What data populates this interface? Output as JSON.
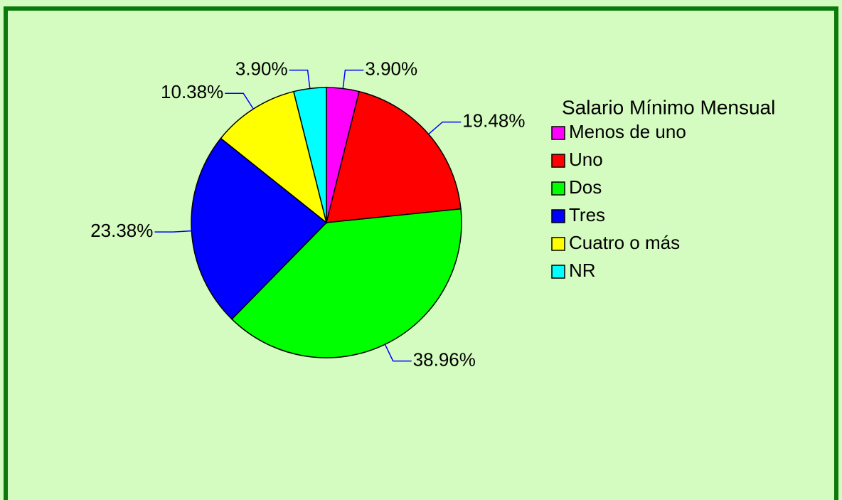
{
  "chart_data": {
    "type": "pie",
    "legend_title": "Salario Mínimo Mensual",
    "categories": [
      "Menos de uno",
      "Uno",
      "Dos",
      "Tres",
      "Cuatro o más",
      "NR"
    ],
    "values": [
      3.9,
      19.48,
      38.96,
      23.38,
      10.38,
      3.9
    ],
    "value_labels": [
      "3.90%",
      "19.48%",
      "38.96%",
      "23.38%",
      "10.38%",
      "3.90%"
    ],
    "colors": [
      "#ff00ff",
      "#ff0000",
      "#00ff00",
      "#0000ff",
      "#ffff00",
      "#00ffff"
    ],
    "legend": "right"
  }
}
